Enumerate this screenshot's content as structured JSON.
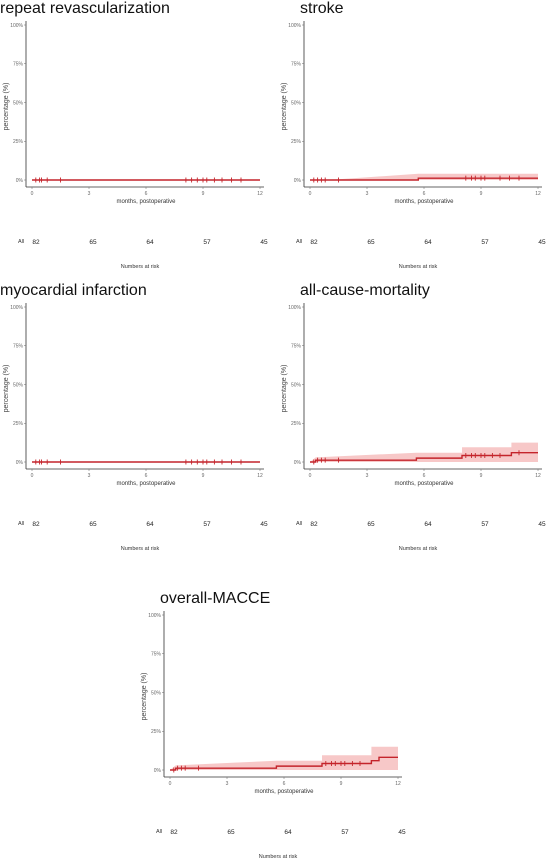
{
  "common": {
    "ylabel": "percentage (%)",
    "xlabel": "months, postoperative",
    "y_ticks": [
      "0%",
      "25%",
      "50%",
      "75%",
      "100%"
    ],
    "x_ticks": [
      "0",
      "3",
      "6",
      "9",
      "12"
    ],
    "risk_group": "All",
    "risk_title": "Numbers at risk",
    "colors": {
      "line": "#c4242b",
      "band": "#f4b5b5",
      "axis": "#333333"
    }
  },
  "chart_data": [
    {
      "type": "line",
      "title": "repeat revascularization",
      "xlabel": "months, postoperative",
      "ylabel": "percentage (%)",
      "xlim": [
        0,
        12
      ],
      "ylim": [
        0,
        100
      ],
      "series": [
        {
          "x": [
            0,
            12
          ],
          "y": [
            0,
            0
          ]
        }
      ],
      "ci_upper": {
        "x": [
          0,
          12
        ],
        "y": [
          0,
          0
        ]
      },
      "censor_ticks": [
        0.2,
        0.4,
        0.5,
        0.8,
        1.5,
        8.1,
        8.4,
        8.7,
        9.0,
        9.2,
        9.6,
        10.0,
        10.5,
        11.0
      ],
      "risk_times": [
        0,
        3,
        6,
        9,
        12
      ],
      "at_risk": [
        "82",
        "65",
        "64",
        "57",
        "45"
      ]
    },
    {
      "type": "line",
      "title": "stroke",
      "xlabel": "months, postoperative",
      "ylabel": "percentage (%)",
      "xlim": [
        0,
        12
      ],
      "ylim": [
        0,
        100
      ],
      "series": [
        {
          "x": [
            0,
            5.7,
            5.7,
            12
          ],
          "y": [
            0,
            0,
            1.2,
            1.2
          ]
        }
      ],
      "ci_upper": {
        "x": [
          0,
          1.5,
          5.7,
          12
        ],
        "y": [
          0,
          0.5,
          4.0,
          4.0
        ]
      },
      "censor_ticks": [
        0.2,
        0.4,
        0.6,
        0.8,
        1.5,
        8.2,
        8.5,
        8.7,
        9.0,
        9.2,
        10.0,
        10.5,
        11.0
      ],
      "risk_times": [
        0,
        3,
        6,
        9,
        12
      ],
      "at_risk": [
        "82",
        "65",
        "64",
        "57",
        "45"
      ]
    },
    {
      "type": "line",
      "title": "myocardial infarction",
      "xlabel": "months, postoperative",
      "ylabel": "percentage (%)",
      "xlim": [
        0,
        12
      ],
      "ylim": [
        0,
        100
      ],
      "series": [
        {
          "x": [
            0,
            12
          ],
          "y": [
            0,
            0
          ]
        }
      ],
      "ci_upper": {
        "x": [
          0,
          12
        ],
        "y": [
          0,
          0
        ]
      },
      "censor_ticks": [
        0.2,
        0.4,
        0.5,
        0.8,
        1.5,
        8.1,
        8.4,
        8.7,
        9.0,
        9.2,
        9.6,
        10.0,
        10.5,
        11.0
      ],
      "risk_times": [
        0,
        3,
        6,
        9,
        12
      ],
      "at_risk": [
        "82",
        "65",
        "64",
        "57",
        "45"
      ]
    },
    {
      "type": "line",
      "title": "all-cause-mortality",
      "xlabel": "months, postoperative",
      "ylabel": "percentage (%)",
      "xlim": [
        0,
        12
      ],
      "ylim": [
        0,
        100
      ],
      "series": [
        {
          "x": [
            0,
            0.3,
            0.3,
            5.6,
            5.6,
            8.0,
            8.0,
            10.6,
            10.6,
            12
          ],
          "y": [
            0,
            0,
            1.2,
            1.2,
            2.5,
            2.5,
            4.2,
            4.2,
            6.0,
            6.0
          ]
        }
      ],
      "ci_upper": {
        "x": [
          0,
          0.3,
          5.6,
          8.0,
          8.0,
          10.6,
          10.6,
          12
        ],
        "y": [
          0,
          3.0,
          6.0,
          6.0,
          9.5,
          9.5,
          12.5,
          12.5
        ]
      },
      "censor_ticks": [
        0.2,
        0.4,
        0.6,
        0.8,
        1.5,
        8.2,
        8.5,
        8.7,
        9.0,
        9.2,
        9.6,
        10.0,
        11.0
      ],
      "risk_times": [
        0,
        3,
        6,
        9,
        12
      ],
      "at_risk": [
        "82",
        "65",
        "64",
        "57",
        "45"
      ]
    },
    {
      "type": "line",
      "title": "overall-MACCE",
      "xlabel": "months, postoperative",
      "ylabel": "percentage (%)",
      "xlim": [
        0,
        12
      ],
      "ylim": [
        0,
        100
      ],
      "series": [
        {
          "x": [
            0,
            0.3,
            0.3,
            5.6,
            5.6,
            8.0,
            8.0,
            10.6,
            10.6,
            11.0,
            11.0,
            12
          ],
          "y": [
            0,
            0,
            1.2,
            1.2,
            2.5,
            2.5,
            4.2,
            4.2,
            6.0,
            6.0,
            8.2,
            8.2
          ]
        }
      ],
      "ci_upper": {
        "x": [
          0,
          0.3,
          5.6,
          8.0,
          8.0,
          10.6,
          10.6,
          12
        ],
        "y": [
          0,
          3.0,
          6.0,
          6.0,
          9.5,
          9.5,
          15.0,
          15.0
        ]
      },
      "censor_ticks": [
        0.2,
        0.4,
        0.6,
        0.8,
        1.5,
        8.2,
        8.5,
        8.7,
        9.0,
        9.2,
        9.6,
        10.0
      ],
      "risk_times": [
        0,
        3,
        6,
        9,
        12
      ],
      "at_risk": [
        "82",
        "65",
        "64",
        "57",
        "45"
      ]
    }
  ]
}
